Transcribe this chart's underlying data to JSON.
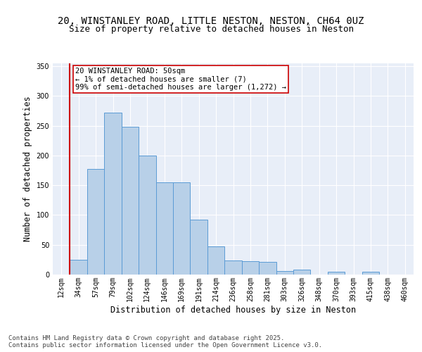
{
  "title_line1": "20, WINSTANLEY ROAD, LITTLE NESTON, NESTON, CH64 0UZ",
  "title_line2": "Size of property relative to detached houses in Neston",
  "xlabel": "Distribution of detached houses by size in Neston",
  "ylabel": "Number of detached properties",
  "categories": [
    "12sqm",
    "34sqm",
    "57sqm",
    "79sqm",
    "102sqm",
    "124sqm",
    "146sqm",
    "169sqm",
    "191sqm",
    "214sqm",
    "236sqm",
    "258sqm",
    "281sqm",
    "303sqm",
    "326sqm",
    "348sqm",
    "370sqm",
    "393sqm",
    "415sqm",
    "438sqm",
    "460sqm"
  ],
  "values": [
    0,
    25,
    178,
    272,
    248,
    200,
    155,
    155,
    92,
    47,
    24,
    23,
    21,
    6,
    8,
    0,
    5,
    0,
    5,
    0,
    0
  ],
  "bar_color": "#b8d0e8",
  "bar_edge_color": "#5b9bd5",
  "vline_color": "#cc0000",
  "annotation_text": "20 WINSTANLEY ROAD: 50sqm\n← 1% of detached houses are smaller (7)\n99% of semi-detached houses are larger (1,272) →",
  "annotation_box_color": "#ffffff",
  "annotation_box_edge": "#cc0000",
  "ylim": [
    0,
    355
  ],
  "yticks": [
    0,
    50,
    100,
    150,
    200,
    250,
    300,
    350
  ],
  "bg_color": "#e8eef8",
  "grid_color": "#ffffff",
  "footer": "Contains HM Land Registry data © Crown copyright and database right 2025.\nContains public sector information licensed under the Open Government Licence v3.0.",
  "title_fontsize": 10,
  "subtitle_fontsize": 9,
  "axis_label_fontsize": 8.5,
  "tick_fontsize": 7,
  "footer_fontsize": 6.5,
  "annotation_fontsize": 7.5
}
